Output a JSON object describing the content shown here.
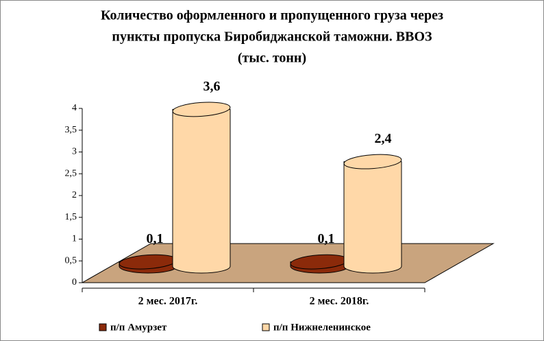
{
  "chart_data": {
    "type": "cylinder3d",
    "title": [
      "Количество оформленного и пропущенного груза через",
      "пункты пропуска Биробиджанской таможни. ВВОЗ",
      "(тыс. тонн)"
    ],
    "categories": [
      "2 мес. 2017г.",
      "2 мес. 2018г."
    ],
    "series": [
      {
        "name": "п/п Амурзет",
        "color": "#8b2a0a",
        "values": [
          0.1,
          0.1
        ],
        "value_labels": [
          "0,1",
          "0,1"
        ]
      },
      {
        "name": "п/п Нижнеленинское",
        "color": "#ffd8a8",
        "values": [
          3.6,
          2.4
        ],
        "value_labels": [
          "3,6",
          "2,4"
        ]
      }
    ],
    "ylim": [
      0,
      4
    ],
    "yticks": [
      0,
      {
        "value": 0.5,
        "label": "0,5"
      },
      1,
      {
        "value": 1.5,
        "label": "1,5"
      },
      2,
      {
        "value": 2.5,
        "label": "2,5"
      },
      3,
      {
        "value": 3.5,
        "label": "3,5"
      },
      4
    ],
    "floor_color": "#c9a47e"
  }
}
